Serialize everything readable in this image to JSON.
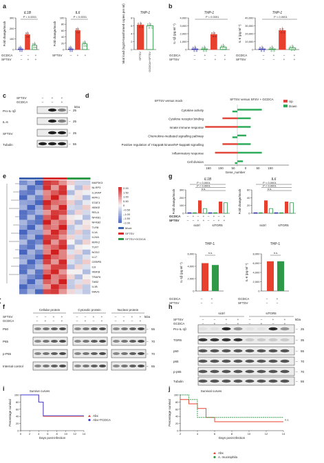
{
  "panels": {
    "a": {
      "label": "a",
      "sub": [
        {
          "title": "IL1B",
          "ylabel": "Fold change/mock",
          "yticks": [
            "0",
            "100",
            "200",
            "300"
          ],
          "pval": "P < 0.0001",
          "values": [
            2,
            140,
            40
          ],
          "colors": [
            "#2f2fb0",
            "#e8402f",
            "#2e9a47"
          ],
          "ymax": 300
        },
        {
          "title": "IL6",
          "ylabel": "Fold change/mock",
          "yticks": [
            "0",
            "20",
            "40",
            "60",
            "80",
            "100"
          ],
          "pval": "P < 0.0001",
          "values": [
            1,
            60,
            18
          ],
          "colors": [
            "#2f2fb0",
            "#e8402f",
            "#2e9a47"
          ],
          "ymax": 100
        },
        {
          "title": "THP-1",
          "ylabel": "Viral load (log10-transformed copies per ml)",
          "yticks": [
            "0",
            "2",
            "4",
            "6",
            "8"
          ],
          "values": [
            6.2,
            6.0
          ],
          "colors": [
            "#e8402f",
            "#2e9a47"
          ],
          "ymax": 8,
          "xcats": [
            "SFTSV",
            "GCDCA+SFTSV"
          ]
        }
      ],
      "rows": [
        {
          "name": "GCDCA",
          "vals": [
            "–",
            "–",
            "+"
          ]
        },
        {
          "name": "SFTSV",
          "vals": [
            "–",
            "+",
            "+"
          ]
        }
      ]
    },
    "b": {
      "label": "b",
      "sub": [
        {
          "title": "THP-1",
          "ylabel": "IL-1β (pg ml⁻¹)",
          "yticks": [
            "0",
            "1,000",
            "2,000",
            "3,000",
            "4,000"
          ],
          "pval": "P < 0.0001",
          "values": [
            5,
            10,
            1900,
            300
          ],
          "colors": [
            "#2f2fb0",
            "#2e9a47",
            "#e8402f",
            "#2e9a47"
          ],
          "ymax": 4000
        },
        {
          "title": "THP-1",
          "ylabel": "IL-6 (pg ml⁻¹)",
          "yticks": [
            "0",
            "10,000",
            "20,000",
            "30,000",
            "40,000"
          ],
          "pval": "P < 0.0001",
          "values": [
            200,
            300,
            24000,
            2000
          ],
          "colors": [
            "#2f2fb0",
            "#2e9a47",
            "#e8402f",
            "#2e9a47"
          ],
          "ymax": 40000
        }
      ],
      "rows": [
        {
          "name": "GCDCA",
          "vals": [
            "–",
            "+",
            "–",
            "+"
          ]
        },
        {
          "name": "SFTSV",
          "vals": [
            "–",
            "–",
            "+",
            "+"
          ]
        }
      ]
    },
    "c": {
      "label": "c",
      "rows": [
        {
          "name": "SFTSV",
          "vals": [
            "–",
            "+",
            "+"
          ]
        },
        {
          "name": "GCDCA",
          "vals": [
            "–",
            "–",
            "+"
          ]
        }
      ],
      "kda": "kDa",
      "blots": [
        {
          "name": "Pro-IL-1β",
          "kda": "25"
        },
        {
          "name": "IL-6",
          "kda": "25"
        },
        {
          "name": "SFTSV",
          "kda": "25"
        },
        {
          "name": "Tubulin",
          "kda": "55"
        }
      ]
    },
    "d": {
      "label": "d",
      "title_left": "SFTSV versus mock",
      "title_right": "SFTSV versus SFSV + GCDCA",
      "legend": [
        {
          "name": "Up",
          "color": "#e0463a"
        },
        {
          "name": "Down",
          "color": "#2eab5a"
        }
      ],
      "xlabel": "Gene_number",
      "xticks": [
        "150",
        "100",
        "50",
        "0",
        "50",
        "100"
      ],
      "terms": [
        {
          "name": "Cytokine activity",
          "left_up": 0,
          "left_down": 20,
          "right_up": 0,
          "right_down": 110
        },
        {
          "name": "Cytokine receptor binding",
          "left_up": 60,
          "left_down": 0,
          "right_up": 0,
          "right_down": 60
        },
        {
          "name": "Innate immune response",
          "left_up": 130,
          "left_down": 0,
          "right_up": 0,
          "right_down": 60
        },
        {
          "name": "Chemokine-mediated signalling pathway",
          "left_up": 0,
          "left_down": 20,
          "right_up": 0,
          "right_down": 40
        },
        {
          "name": "Positive regulation of I-kappaB kinase/NF-kappaB signalling",
          "left_up": 60,
          "left_down": 0,
          "right_up": 0,
          "right_down": 60
        },
        {
          "name": "Inflammatory response",
          "left_up": 90,
          "left_down": 0,
          "right_up": 0,
          "right_down": 110
        },
        {
          "name": "Cell division",
          "left_up": 0,
          "left_down": 10,
          "right_up": 0,
          "right_down": 25
        }
      ]
    },
    "e": {
      "label": "e",
      "genes": [
        "MAP3K3",
        "NLRP3",
        "IL1RAP",
        "RIPK1",
        "STAT3",
        "IKBKE",
        "RELA",
        "NFKB1",
        "NFKB2",
        "TLR8",
        "IL1A",
        "IL24A",
        "RIPK2",
        "TLR7",
        "NOD2",
        "IL17",
        "CEBPB",
        "IL6",
        "IKBKB",
        "TRAF6",
        "TAB2",
        "IL1B",
        "MAVS"
      ],
      "scale_ticks": [
        "2.00",
        "1.50",
        "1.00",
        "0.50",
        "0",
        "–0.50",
        "–1.00",
        "–1.50",
        "–2.00"
      ],
      "legend": [
        {
          "name": "Mock",
          "color": "#3c62b0"
        },
        {
          "name": "SFTSV",
          "color": "#d62a2a"
        },
        {
          "name": "SFTSV+GCDCA",
          "color": "#2e9a47"
        }
      ]
    },
    "f": {
      "label": "f",
      "groups": [
        "Cellular protein",
        "Cytosolic protein",
        "Nuclear protein"
      ],
      "rows": [
        {
          "name": "SFTSV",
          "vals": [
            "–",
            "–",
            "+",
            "+"
          ]
        },
        {
          "name": "GCDCA",
          "vals": [
            "–",
            "+",
            "–",
            "+"
          ]
        }
      ],
      "kda": "kDa",
      "blots": [
        {
          "name": "P50",
          "kda": "55"
        },
        {
          "name": "P65",
          "kda": "70"
        },
        {
          "name": "p-P65",
          "kda": "70"
        },
        {
          "name": "Internal control",
          "kda": "55"
        }
      ]
    },
    "g": {
      "label": "g",
      "top": [
        {
          "title": "IL1B",
          "ylabel": "Fold change/mock",
          "yticks": [
            "0",
            "100",
            "200",
            "300"
          ],
          "pvals": [
            "P < 0.0001",
            "P < 0.0001",
            "n.s."
          ],
          "groups": [
            "sictrl",
            "siTGR5"
          ]
        },
        {
          "title": "IL6",
          "ylabel": "Fold change/mock",
          "yticks": [
            "0",
            "20",
            "40",
            "60"
          ],
          "pvals": [
            "P < 0.0001",
            "P < 0.0001",
            "n.s."
          ],
          "groups": [
            "sictrl",
            "siTGR5"
          ]
        }
      ],
      "bottom": [
        {
          "title": "THP-1",
          "ylabel": "IL-1β (pg ml⁻¹)",
          "yticks": [
            "0",
            "2,000",
            "4,000",
            "6,000"
          ],
          "pval": "n.s.",
          "values": [
            4500,
            4200
          ],
          "ymax": 6000
        },
        {
          "title": "THP-1",
          "ylabel": "IL-6 (pg ml⁻¹)",
          "yticks": [
            "0",
            "2,000",
            "4,000",
            "6,000",
            "8,000"
          ],
          "pval": "n.s.",
          "values": [
            6400,
            6400
          ],
          "ymax": 8000
        }
      ],
      "rows": [
        {
          "name": "GCDCA",
          "vals": [
            "–",
            "+",
            "–",
            "+"
          ]
        },
        {
          "name": "SFTSV",
          "vals": [
            "–",
            "–",
            "+",
            "+"
          ]
        }
      ]
    },
    "h": {
      "label": "h",
      "groups": [
        "sictrl",
        "siTGR5"
      ],
      "rows": [
        {
          "name": "SFTSV",
          "vals": [
            "–",
            "–",
            "+",
            "+",
            "–",
            "–",
            "+",
            "+"
          ]
        },
        {
          "name": "GCDCA",
          "vals": [
            "–",
            "+",
            "–",
            "+",
            "–",
            "+",
            "–",
            "+"
          ]
        }
      ],
      "kda": "kDa",
      "blots": [
        {
          "name": "Pro-IL-1β",
          "kda": "25"
        },
        {
          "name": "TGR5",
          "kda": "35"
        },
        {
          "name": "p50",
          "kda": "55"
        },
        {
          "name": "p65",
          "kda": "70"
        },
        {
          "name": "p-p65",
          "kda": "70"
        },
        {
          "name": "Tubulin",
          "kda": "55"
        }
      ]
    },
    "i": {
      "label": "i",
      "title": "Survive curves",
      "ylabel": "Percentage survival",
      "xlabel": "Days post-infection",
      "yticks": [
        "0",
        "20",
        "40",
        "60",
        "80",
        "100"
      ],
      "xticks": [
        "0",
        "2",
        "4",
        "6",
        "8",
        "10",
        "12",
        "14"
      ],
      "series": [
        {
          "name": "Abx",
          "color": "#e8402f",
          "points": [
            [
              0,
              100
            ],
            [
              4,
              100
            ],
            [
              4,
              80
            ],
            [
              5,
              80
            ],
            [
              5,
              40
            ],
            [
              14,
              40
            ]
          ]
        },
        {
          "name": "Abx+TCDCA",
          "color": "#3a3ad0",
          "points": [
            [
              0,
              100
            ],
            [
              4,
              100
            ],
            [
              4,
              80
            ],
            [
              5,
              80
            ],
            [
              5,
              42
            ],
            [
              14,
              42
            ]
          ]
        }
      ]
    },
    "j": {
      "label": "j",
      "title": "Survival curves",
      "ylabel": "Percentage survival",
      "xlabel": "Days post-infection",
      "yticks": [
        "0",
        "20",
        "40",
        "60",
        "80",
        "100"
      ],
      "xticks": [
        "2",
        "4",
        "6",
        "8",
        "10",
        "12",
        "14"
      ],
      "pval": "n.s.",
      "series": [
        {
          "name": "Abx",
          "color": "#e8402f",
          "points": [
            [
              2,
              87
            ],
            [
              3,
              87
            ],
            [
              3,
              75
            ],
            [
              4,
              75
            ],
            [
              4,
              62
            ],
            [
              5,
              62
            ],
            [
              5,
              37
            ],
            [
              6,
              37
            ],
            [
              6,
              25
            ],
            [
              14,
              25
            ]
          ]
        },
        {
          "name": "A. muciniphila",
          "color": "#2e9a47",
          "points": [
            [
              2,
              100
            ],
            [
              3,
              100
            ],
            [
              3,
              87
            ],
            [
              4,
              87
            ],
            [
              4,
              37
            ],
            [
              14,
              37
            ]
          ]
        }
      ]
    }
  }
}
